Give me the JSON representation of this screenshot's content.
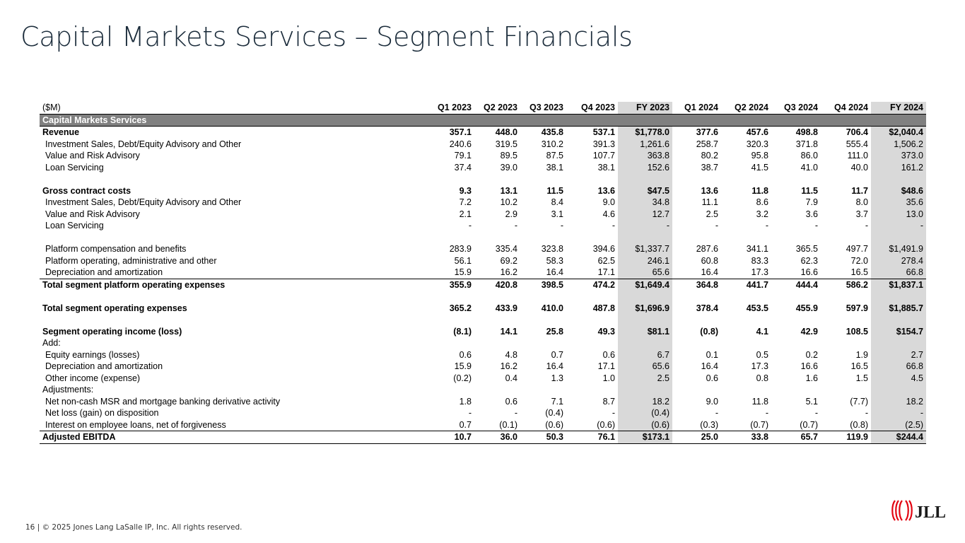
{
  "title": "Capital Markets Services – Segment Financials",
  "footer": "16 | © 2025 Jones Lang LaSalle IP, Inc. All rights reserved.",
  "logo": {
    "text": "JLL",
    "color": "#e30613"
  },
  "table": {
    "unit_label": "($M)",
    "columns": [
      "Q1 2023",
      "Q2 2023",
      "Q3 2023",
      "Q4 2023",
      "FY 2023",
      "Q1 2024",
      "Q2 2024",
      "Q3 2024",
      "Q4 2024",
      "FY 2024"
    ],
    "section_label": "Capital Markets Services",
    "rows": [
      {
        "label": "Revenue",
        "style": "bold",
        "values": [
          "357.1",
          "448.0",
          "435.8",
          "537.1",
          "$1,778.0",
          "377.6",
          "457.6",
          "498.8",
          "706.4",
          "$2,040.4"
        ]
      },
      {
        "label": "Investment Sales, Debt/Equity Advisory and Other",
        "style": "ind",
        "values": [
          "240.6",
          "319.5",
          "310.2",
          "391.3",
          "1,261.6",
          "258.7",
          "320.3",
          "371.8",
          "555.4",
          "1,506.2"
        ]
      },
      {
        "label": "Value and Risk Advisory",
        "style": "ind",
        "values": [
          "79.1",
          "89.5",
          "87.5",
          "107.7",
          "363.8",
          "80.2",
          "95.8",
          "86.0",
          "111.0",
          "373.0"
        ]
      },
      {
        "label": "Loan Servicing",
        "style": "ind",
        "values": [
          "37.4",
          "39.0",
          "38.1",
          "38.1",
          "152.6",
          "38.7",
          "41.5",
          "41.0",
          "40.0",
          "161.2"
        ]
      },
      {
        "style": "spacer"
      },
      {
        "label": "Gross contract costs",
        "style": "bold",
        "values": [
          "9.3",
          "13.1",
          "11.5",
          "13.6",
          "$47.5",
          "13.6",
          "11.8",
          "11.5",
          "11.7",
          "$48.6"
        ]
      },
      {
        "label": "Investment Sales, Debt/Equity Advisory and Other",
        "style": "ind",
        "values": [
          "7.2",
          "10.2",
          "8.4",
          "9.0",
          "34.8",
          "11.1",
          "8.6",
          "7.9",
          "8.0",
          "35.6"
        ]
      },
      {
        "label": "Value and Risk Advisory",
        "style": "ind",
        "values": [
          "2.1",
          "2.9",
          "3.1",
          "4.6",
          "12.7",
          "2.5",
          "3.2",
          "3.6",
          "3.7",
          "13.0"
        ]
      },
      {
        "label": "Loan Servicing",
        "style": "ind",
        "values": [
          "-",
          "-",
          "-",
          "-",
          "-",
          "-",
          "-",
          "-",
          "-",
          "-"
        ]
      },
      {
        "style": "spacer"
      },
      {
        "label": "Platform compensation and benefits",
        "style": "ind",
        "values": [
          "283.9",
          "335.4",
          "323.8",
          "394.6",
          "$1,337.7",
          "287.6",
          "341.1",
          "365.5",
          "497.7",
          "$1,491.9"
        ]
      },
      {
        "label": "Platform operating, administrative and other",
        "style": "ind",
        "values": [
          "56.1",
          "69.2",
          "58.3",
          "62.5",
          "246.1",
          "60.8",
          "83.3",
          "62.3",
          "72.0",
          "278.4"
        ]
      },
      {
        "label": "Depreciation and amortization",
        "style": "ind",
        "values": [
          "15.9",
          "16.2",
          "16.4",
          "17.1",
          "65.6",
          "16.4",
          "17.3",
          "16.6",
          "16.5",
          "66.8"
        ]
      },
      {
        "label": "Total segment platform operating expenses",
        "style": "bold topline",
        "values": [
          "355.9",
          "420.8",
          "398.5",
          "474.2",
          "$1,649.4",
          "364.8",
          "441.7",
          "444.4",
          "586.2",
          "$1,837.1"
        ]
      },
      {
        "style": "spacer"
      },
      {
        "label": "Total segment operating expenses",
        "style": "bold",
        "values": [
          "365.2",
          "433.9",
          "410.0",
          "487.8",
          "$1,696.9",
          "378.4",
          "453.5",
          "455.9",
          "597.9",
          "$1,885.7"
        ]
      },
      {
        "style": "spacer"
      },
      {
        "label": "Segment operating income (loss)",
        "style": "bold",
        "values": [
          "(8.1)",
          "14.1",
          "25.8",
          "49.3",
          "$81.1",
          "(0.8)",
          "4.1",
          "42.9",
          "108.5",
          "$154.7"
        ]
      },
      {
        "label": "Add:",
        "style": "plain",
        "values": [
          "",
          "",
          "",
          "",
          "",
          "",
          "",
          "",
          "",
          ""
        ]
      },
      {
        "label": "Equity earnings (losses)",
        "style": "ind",
        "values": [
          "0.6",
          "4.8",
          "0.7",
          "0.6",
          "6.7",
          "0.1",
          "0.5",
          "0.2",
          "1.9",
          "2.7"
        ]
      },
      {
        "label": "Depreciation and amortization",
        "style": "ind",
        "values": [
          "15.9",
          "16.2",
          "16.4",
          "17.1",
          "65.6",
          "16.4",
          "17.3",
          "16.6",
          "16.5",
          "66.8"
        ]
      },
      {
        "label": "Other income (expense)",
        "style": "ind",
        "values": [
          "(0.2)",
          "0.4",
          "1.3",
          "1.0",
          "2.5",
          "0.6",
          "0.8",
          "1.6",
          "1.5",
          "4.5"
        ]
      },
      {
        "label": "Adjustments:",
        "style": "plain",
        "values": [
          "",
          "",
          "",
          "",
          "",
          "",
          "",
          "",
          "",
          ""
        ]
      },
      {
        "label": "Net non-cash MSR and mortgage banking derivative activity",
        "style": "ind",
        "values": [
          "1.8",
          "0.6",
          "7.1",
          "8.7",
          "18.2",
          "9.0",
          "11.8",
          "5.1",
          "(7.7)",
          "18.2"
        ]
      },
      {
        "label": "Net loss (gain) on disposition",
        "style": "ind",
        "values": [
          "-",
          "-",
          "(0.4)",
          "-",
          "(0.4)",
          "-",
          "-",
          "-",
          "-",
          "-"
        ]
      },
      {
        "label": "Interest on employee loans, net of forgiveness",
        "style": "ind",
        "values": [
          "0.7",
          "(0.1)",
          "(0.6)",
          "(0.6)",
          "(0.6)",
          "(0.3)",
          "(0.7)",
          "(0.7)",
          "(0.8)",
          "(2.5)"
        ]
      },
      {
        "label": "Adjusted EBITDA",
        "style": "bold topline botline",
        "values": [
          "10.7",
          "36.0",
          "50.3",
          "76.1",
          "$173.1",
          "25.0",
          "33.8",
          "65.7",
          "119.9",
          "$244.4"
        ]
      }
    ]
  }
}
